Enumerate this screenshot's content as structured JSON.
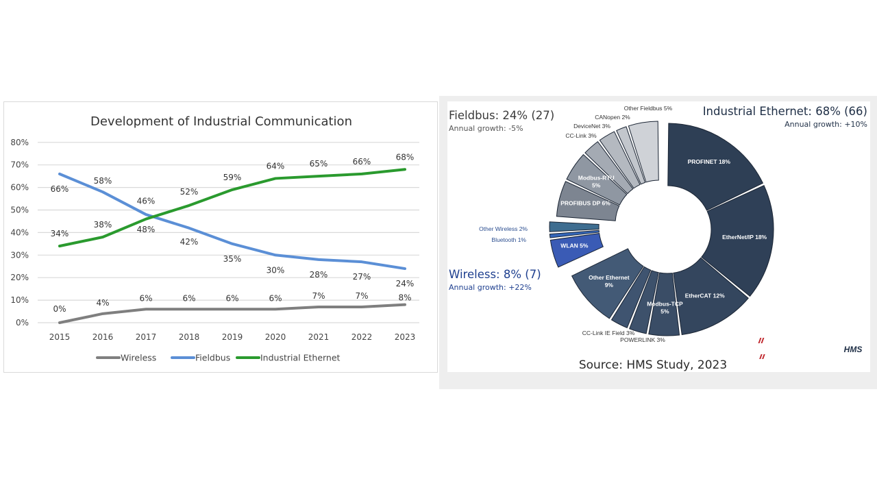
{
  "chart_data": [
    {
      "type": "line",
      "title": "Development of Industrial Communication",
      "xlabel": "",
      "ylabel": "",
      "categories": [
        "2015",
        "2016",
        "2017",
        "2018",
        "2019",
        "2020",
        "2021",
        "2022",
        "2023"
      ],
      "y_ticks": [
        "0%",
        "10%",
        "20%",
        "30%",
        "40%",
        "50%",
        "60%",
        "70%",
        "80%"
      ],
      "ylim": [
        0,
        80
      ],
      "grid": true,
      "legend_position": "bottom",
      "series": [
        {
          "name": "Wireless",
          "color": "#7f7f7f",
          "values": [
            0,
            4,
            6,
            6,
            6,
            6,
            7,
            7,
            8
          ],
          "labels": [
            "0%",
            "4%",
            "6%",
            "6%",
            "6%",
            "6%",
            "7%",
            "7%",
            "8%"
          ]
        },
        {
          "name": "Fieldbus",
          "color": "#5b8fd6",
          "values": [
            66,
            58,
            48,
            42,
            35,
            30,
            28,
            27,
            24
          ],
          "labels": [
            "66%",
            "58%",
            "48%",
            "42%",
            "35%",
            "30%",
            "28%",
            "27%",
            "24%"
          ]
        },
        {
          "name": "Industrial Ethernet",
          "color": "#2a9a2e",
          "values": [
            34,
            38,
            46,
            52,
            59,
            64,
            65,
            66,
            68
          ],
          "labels": [
            "34%",
            "38%",
            "46%",
            "52%",
            "59%",
            "64%",
            "65%",
            "66%",
            "68%"
          ]
        }
      ]
    },
    {
      "type": "pie",
      "donut": true,
      "title": "",
      "source": "Source: HMS Study, 2023",
      "logo": "HMS",
      "groups": [
        {
          "name": "Industrial Ethernet",
          "header": "Industrial Ethernet: 68% (66)",
          "growth": "Annual growth: +10%",
          "color": "#2e3f55"
        },
        {
          "name": "Wireless",
          "header": "Wireless: 8% (7)",
          "growth": "Annual growth: +22%",
          "color": "#1e3f8f"
        },
        {
          "name": "Fieldbus",
          "header": "Fieldbus: 24% (27)",
          "growth": "Annual growth: -5%",
          "color": "#333333"
        }
      ],
      "slices": [
        {
          "label": "PROFINET 18%",
          "value": 18,
          "group": "Industrial Ethernet",
          "color": "#2e3f55",
          "label_inside": true
        },
        {
          "label": "EtherNet/IP 18%",
          "value": 18,
          "group": "Industrial Ethernet",
          "color": "#2f4057",
          "label_inside": true
        },
        {
          "label": "EtherCAT 12%",
          "value": 12,
          "group": "Industrial Ethernet",
          "color": "#34465e",
          "label_inside": true
        },
        {
          "label": "Modbus-TCP 5%",
          "value": 5,
          "group": "Industrial Ethernet",
          "color": "#3a4d66",
          "label_inside": true
        },
        {
          "label": "POWERLINK 3%",
          "value": 3,
          "group": "Industrial Ethernet",
          "color": "#3d516b",
          "label_inside": false
        },
        {
          "label": "CC-Link IE Field 3%",
          "value": 3,
          "group": "Industrial Ethernet",
          "color": "#3f5470",
          "label_inside": false
        },
        {
          "label": "Other Ethernet 9%",
          "value": 9,
          "group": "Industrial Ethernet",
          "color": "#435a76",
          "label_inside": true
        },
        {
          "label": "WLAN 5%",
          "value": 5,
          "group": "Wireless",
          "color": "#3a5bb5",
          "label_inside": true
        },
        {
          "label": "Bluetooth 1%",
          "value": 1,
          "group": "Wireless",
          "color": "#3466b8",
          "label_inside": false
        },
        {
          "label": "Other Wireless 2%",
          "value": 2,
          "group": "Wireless",
          "color": "#3e6d90",
          "label_inside": false
        },
        {
          "label": "PROFIBUS DP 6%",
          "value": 6,
          "group": "Fieldbus",
          "color": "#7d8591",
          "label_inside": true
        },
        {
          "label": "Modbus-RTU 5%",
          "value": 5,
          "group": "Fieldbus",
          "color": "#8f97a2",
          "label_inside": true
        },
        {
          "label": "CC-Link 3%",
          "value": 3,
          "group": "Fieldbus",
          "color": "#a4aab3",
          "label_inside": false
        },
        {
          "label": "DeviceNet 3%",
          "value": 3,
          "group": "Fieldbus",
          "color": "#b4b9c0",
          "label_inside": false
        },
        {
          "label": "CANopen 2%",
          "value": 2,
          "group": "Fieldbus",
          "color": "#c2c6cc",
          "label_inside": false
        },
        {
          "label": "Other Fieldbus 5%",
          "value": 5,
          "group": "Fieldbus",
          "color": "#cfd2d7",
          "label_inside": false
        }
      ]
    }
  ]
}
